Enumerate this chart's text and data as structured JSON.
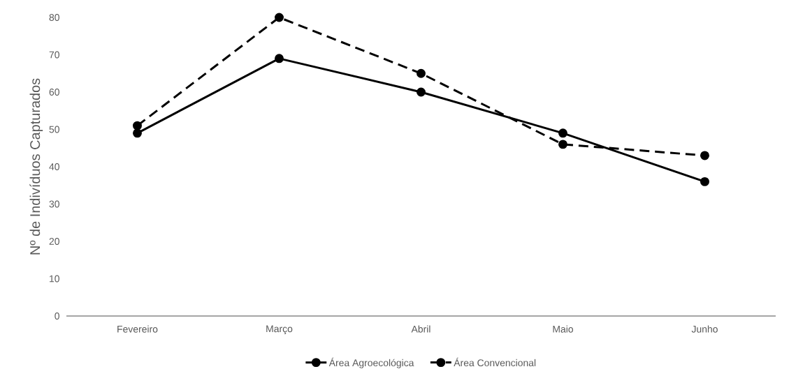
{
  "chart_data": {
    "type": "line",
    "ylabel": "Nº de Indivíduos Capturados",
    "categories": [
      "Fevereiro",
      "Março",
      "Abril",
      "Maio",
      "Junho"
    ],
    "series": [
      {
        "name": "Área Agroecológica",
        "color": "#000000",
        "values": [
          49,
          69,
          60,
          49,
          36
        ],
        "line_style": "solid"
      },
      {
        "name": "Área Convencional",
        "color": "#000000",
        "values": [
          51,
          80,
          65,
          46,
          43
        ],
        "line_style": "dashed"
      }
    ],
    "ylim": [
      0,
      80
    ],
    "yticks": [
      0,
      10,
      20,
      30,
      40,
      50,
      60,
      70,
      80
    ],
    "grid": false,
    "legend": "bottom",
    "marker": "circle"
  }
}
